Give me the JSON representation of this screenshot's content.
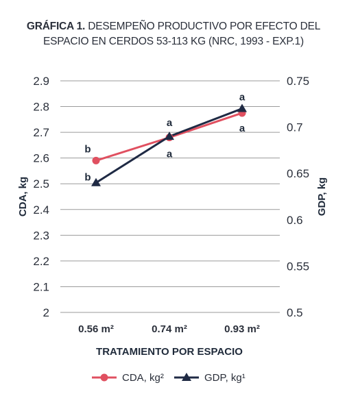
{
  "title": {
    "prefix": "GRÁFICA 1.",
    "line1": "DESEMPEÑO PRODUCTIVO POR EFECTO DEL",
    "line2": "ESPACIO EN CERDOS 53-113 KG (NRC, 1993 - EXP.1)"
  },
  "colors": {
    "cda": "#e05060",
    "gdp": "#1f2a44",
    "grid": "#9a9a9a"
  },
  "chart_data": {
    "type": "line",
    "title": "GRÁFICA 1. DESEMPEÑO PRODUCTIVO POR EFECTO DEL ESPACIO EN CERDOS 53-113 KG (NRC, 1993 - EXP.1)",
    "xlabel": "TRATAMIENTO POR ESPACIO",
    "ylabel": "CDA, kg",
    "y2label": "GDP, kg",
    "categories": [
      "0.56 m²",
      "0.74 m²",
      "0.93 m²"
    ],
    "ylim": [
      2,
      2.9
    ],
    "y2lim": [
      0.5,
      0.75
    ],
    "yticks": [
      "2",
      "2.1",
      "2.2",
      "2.3",
      "2.4",
      "2.5",
      "2.6",
      "2.7",
      "2.8",
      "2.9"
    ],
    "y2ticks": [
      "0.5",
      "0.55",
      "0.6",
      "0.65",
      "0.7",
      "0.75"
    ],
    "grid": true,
    "legend_position": "bottom",
    "series": [
      {
        "name": "CDA, kg²",
        "axis": "left",
        "values": [
          2.59,
          2.68,
          2.775
        ],
        "labels": [
          "b",
          "a",
          "a"
        ]
      },
      {
        "name": "GDP, kg¹",
        "axis": "right",
        "values": [
          0.64,
          0.69,
          0.72
        ],
        "labels": [
          "b",
          "a",
          "a"
        ]
      }
    ]
  }
}
